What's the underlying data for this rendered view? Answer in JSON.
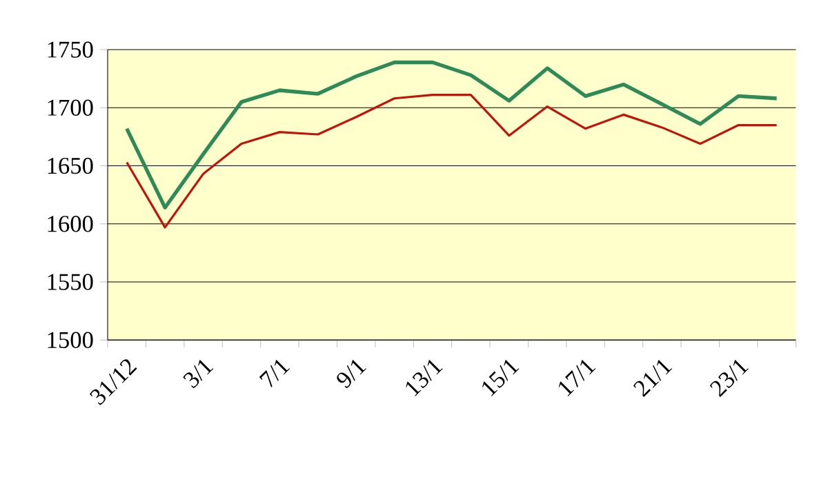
{
  "chart_data": {
    "type": "line",
    "categories": [
      "31/12",
      null,
      "3/1",
      null,
      "7/1",
      null,
      "9/1",
      null,
      "13/1",
      null,
      "15/1",
      null,
      "17/1",
      null,
      "21/1",
      null,
      "23/1",
      null
    ],
    "series": [
      {
        "color": "#2e8b57",
        "values": [
          1682,
          1614,
          1660,
          1705,
          1715,
          1712,
          1727,
          1739,
          1739,
          1728,
          1706,
          1734,
          1710,
          1720,
          1703,
          1686,
          1710,
          1708
        ]
      },
      {
        "color": "#c0140a",
        "values": [
          1653,
          1597,
          1643,
          1669,
          1679,
          1677,
          1692,
          1708,
          1711,
          1711,
          1676,
          1701,
          1682,
          1694,
          1683,
          1669,
          1685,
          1685
        ]
      }
    ],
    "ylim": [
      1500,
      1750
    ],
    "yticks": [
      1500,
      1550,
      1600,
      1650,
      1700,
      1750
    ],
    "grid": "y",
    "marker": "none",
    "line_style": "solid"
  }
}
